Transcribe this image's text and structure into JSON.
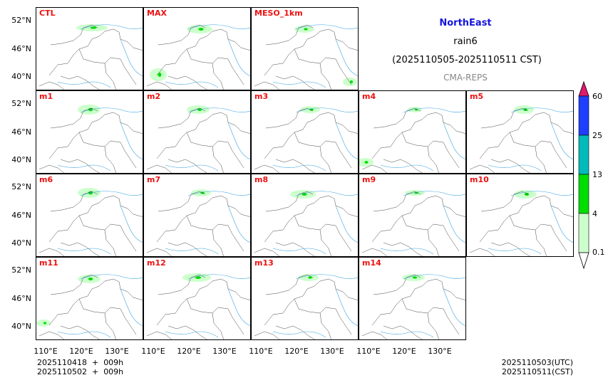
{
  "title": {
    "region": "NorthEast",
    "variable": "rain6",
    "period": "(2025110505-2025110511 CST)",
    "model": "CMA-REPS"
  },
  "panels": [
    {
      "label": "CTL"
    },
    {
      "label": "MAX"
    },
    {
      "label": "MESO_1km"
    },
    {
      "label": "m1"
    },
    {
      "label": "m2"
    },
    {
      "label": "m3"
    },
    {
      "label": "m4"
    },
    {
      "label": "m5"
    },
    {
      "label": "m6"
    },
    {
      "label": "m7"
    },
    {
      "label": "m8"
    },
    {
      "label": "m9"
    },
    {
      "label": "m10"
    },
    {
      "label": "m11"
    },
    {
      "label": "m12"
    },
    {
      "label": "m13"
    },
    {
      "label": "m14"
    }
  ],
  "axes": {
    "lat_ticks": [
      "52°N",
      "46°N",
      "40°N"
    ],
    "lon_ticks": [
      "110°E",
      "120°E",
      "130°E"
    ]
  },
  "colorbar": {
    "levels": [
      "0.1",
      "4",
      "13",
      "25",
      "60"
    ],
    "colors": [
      "#ccffcc",
      "#00dd00",
      "#00bbbb",
      "#1f3fff"
    ],
    "extend_high_color": "#e0196e"
  },
  "footer": {
    "init_line1": "2025110418  +  009h",
    "init_line2": "2025110502  +  009h",
    "valid_utc": "2025110503(UTC)",
    "valid_cst": "2025110511(CST)"
  }
}
